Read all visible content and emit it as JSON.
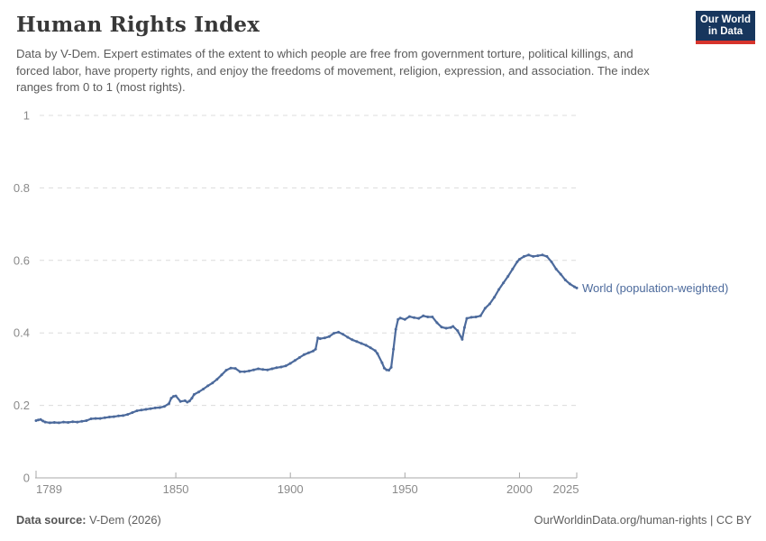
{
  "header": {
    "title": "Human Rights Index",
    "subtitle": "Data by V-Dem. Expert estimates of the extent to which people are free from government torture, political killings, and forced labor, have property rights, and enjoy the freedoms of movement, religion, expression, and association. The index ranges from 0 to 1 (most rights).",
    "logo": {
      "line1": "Our World",
      "line2": "in Data",
      "bg_color": "#17365d",
      "accent_color": "#d6342c"
    }
  },
  "chart_data": {
    "type": "line",
    "title": "Human Rights Index",
    "xlabel": "",
    "ylabel": "",
    "xlim": [
      1789,
      2025
    ],
    "ylim": [
      0,
      1
    ],
    "x_ticks": [
      1789,
      1850,
      1900,
      1950,
      2000,
      2025
    ],
    "y_ticks": [
      0,
      0.2,
      0.4,
      0.6,
      0.8,
      1
    ],
    "grid": "dashed-horizontal",
    "legend_position": "end-of-line-label",
    "colors": {
      "line": "#4C6A9C",
      "gridline": "#dcdcdc",
      "axis": "#a8a8a8",
      "tick_label": "#8a8a8a"
    },
    "series": [
      {
        "name": "World (population-weighted)",
        "color": "#4C6A9C",
        "points": [
          [
            1789,
            0.158
          ],
          [
            1790,
            0.16
          ],
          [
            1791,
            0.161
          ],
          [
            1792,
            0.157
          ],
          [
            1793,
            0.154
          ],
          [
            1795,
            0.152
          ],
          [
            1797,
            0.153
          ],
          [
            1799,
            0.152
          ],
          [
            1801,
            0.154
          ],
          [
            1803,
            0.153
          ],
          [
            1805,
            0.155
          ],
          [
            1807,
            0.154
          ],
          [
            1809,
            0.156
          ],
          [
            1811,
            0.158
          ],
          [
            1813,
            0.163
          ],
          [
            1815,
            0.164
          ],
          [
            1817,
            0.164
          ],
          [
            1819,
            0.166
          ],
          [
            1821,
            0.168
          ],
          [
            1823,
            0.169
          ],
          [
            1825,
            0.171
          ],
          [
            1827,
            0.172
          ],
          [
            1829,
            0.175
          ],
          [
            1831,
            0.18
          ],
          [
            1833,
            0.185
          ],
          [
            1835,
            0.187
          ],
          [
            1837,
            0.189
          ],
          [
            1839,
            0.191
          ],
          [
            1841,
            0.193
          ],
          [
            1843,
            0.194
          ],
          [
            1845,
            0.197
          ],
          [
            1847,
            0.205
          ],
          [
            1848,
            0.22
          ],
          [
            1849,
            0.225
          ],
          [
            1850,
            0.226
          ],
          [
            1852,
            0.211
          ],
          [
            1854,
            0.213
          ],
          [
            1855,
            0.209
          ],
          [
            1856,
            0.212
          ],
          [
            1857,
            0.22
          ],
          [
            1858,
            0.23
          ],
          [
            1860,
            0.237
          ],
          [
            1862,
            0.245
          ],
          [
            1864,
            0.254
          ],
          [
            1866,
            0.262
          ],
          [
            1868,
            0.272
          ],
          [
            1870,
            0.284
          ],
          [
            1872,
            0.297
          ],
          [
            1874,
            0.303
          ],
          [
            1876,
            0.302
          ],
          [
            1878,
            0.293
          ],
          [
            1880,
            0.293
          ],
          [
            1882,
            0.295
          ],
          [
            1884,
            0.298
          ],
          [
            1886,
            0.301
          ],
          [
            1888,
            0.299
          ],
          [
            1890,
            0.298
          ],
          [
            1892,
            0.301
          ],
          [
            1894,
            0.304
          ],
          [
            1896,
            0.306
          ],
          [
            1898,
            0.309
          ],
          [
            1900,
            0.316
          ],
          [
            1902,
            0.324
          ],
          [
            1904,
            0.332
          ],
          [
            1906,
            0.34
          ],
          [
            1908,
            0.345
          ],
          [
            1910,
            0.35
          ],
          [
            1911,
            0.355
          ],
          [
            1912,
            0.386
          ],
          [
            1913,
            0.384
          ],
          [
            1915,
            0.386
          ],
          [
            1917,
            0.39
          ],
          [
            1919,
            0.399
          ],
          [
            1921,
            0.402
          ],
          [
            1923,
            0.396
          ],
          [
            1925,
            0.388
          ],
          [
            1927,
            0.381
          ],
          [
            1929,
            0.376
          ],
          [
            1931,
            0.371
          ],
          [
            1933,
            0.366
          ],
          [
            1935,
            0.359
          ],
          [
            1937,
            0.351
          ],
          [
            1938,
            0.343
          ],
          [
            1940,
            0.318
          ],
          [
            1941,
            0.303
          ],
          [
            1942,
            0.298
          ],
          [
            1943,
            0.297
          ],
          [
            1944,
            0.305
          ],
          [
            1945,
            0.355
          ],
          [
            1946,
            0.41
          ],
          [
            1947,
            0.437
          ],
          [
            1948,
            0.441
          ],
          [
            1950,
            0.437
          ],
          [
            1952,
            0.445
          ],
          [
            1954,
            0.442
          ],
          [
            1956,
            0.44
          ],
          [
            1958,
            0.447
          ],
          [
            1960,
            0.444
          ],
          [
            1962,
            0.444
          ],
          [
            1964,
            0.428
          ],
          [
            1966,
            0.416
          ],
          [
            1968,
            0.413
          ],
          [
            1970,
            0.415
          ],
          [
            1971,
            0.418
          ],
          [
            1973,
            0.406
          ],
          [
            1975,
            0.382
          ],
          [
            1976,
            0.415
          ],
          [
            1977,
            0.44
          ],
          [
            1979,
            0.443
          ],
          [
            1981,
            0.444
          ],
          [
            1983,
            0.447
          ],
          [
            1985,
            0.468
          ],
          [
            1987,
            0.48
          ],
          [
            1989,
            0.498
          ],
          [
            1991,
            0.52
          ],
          [
            1993,
            0.538
          ],
          [
            1995,
            0.556
          ],
          [
            1997,
            0.576
          ],
          [
            1999,
            0.596
          ],
          [
            2000,
            0.603
          ],
          [
            2002,
            0.611
          ],
          [
            2004,
            0.615
          ],
          [
            2006,
            0.611
          ],
          [
            2008,
            0.613
          ],
          [
            2010,
            0.615
          ],
          [
            2012,
            0.611
          ],
          [
            2014,
            0.596
          ],
          [
            2016,
            0.576
          ],
          [
            2018,
            0.562
          ],
          [
            2020,
            0.546
          ],
          [
            2022,
            0.535
          ],
          [
            2024,
            0.527
          ],
          [
            2025,
            0.524
          ]
        ]
      }
    ]
  },
  "footer": {
    "source_label": "Data source:",
    "source_value": "V-Dem (2026)",
    "credit": "OurWorldinData.org/human-rights | CC BY"
  }
}
